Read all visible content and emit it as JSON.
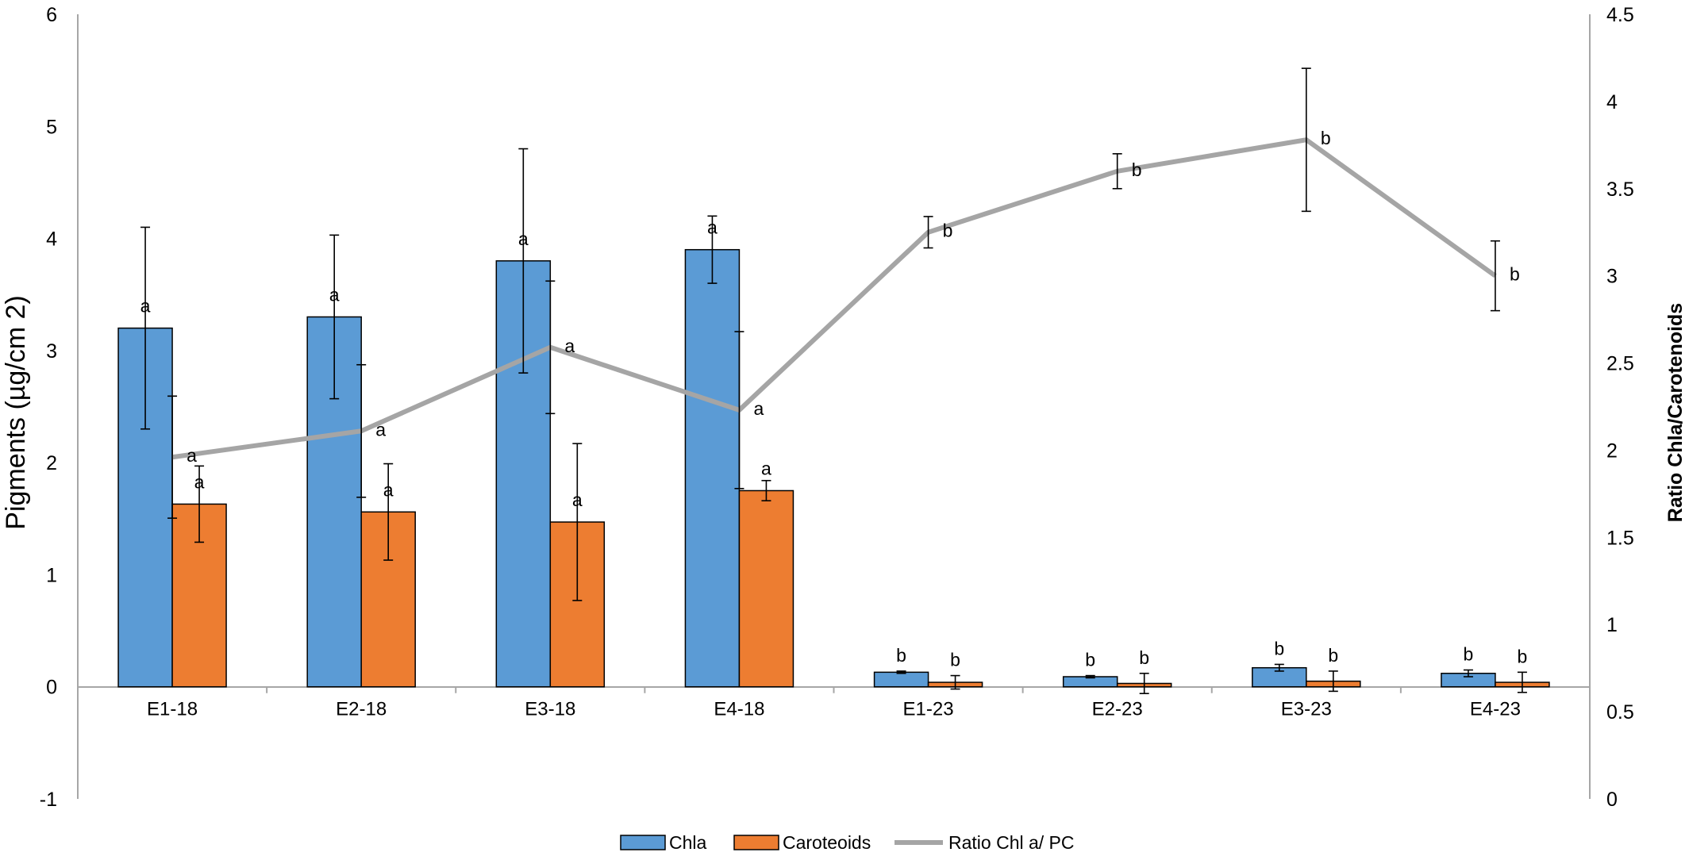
{
  "chart_data": {
    "type": "bar",
    "categories": [
      "E1-18",
      "E2-18",
      "E3-18",
      "E4-18",
      "E1-23",
      "E2-23",
      "E3-23",
      "E4-23"
    ],
    "ylabel": "Pigments (µg/cm 2)",
    "ylabel_right": "Ratio Chla/Carotenoids",
    "ylim": [
      -1,
      6
    ],
    "yticks": [
      "-1",
      "0",
      "1",
      "2",
      "3",
      "4",
      "5",
      "6"
    ],
    "ylim_right": [
      0,
      4.5
    ],
    "yticks_right": [
      "0",
      "0.5",
      "1",
      "1.5",
      "2",
      "2.5",
      "3",
      "3.5",
      "4",
      "4.5"
    ],
    "legend_position": "bottom",
    "grid": false,
    "series": [
      {
        "name": "Chla",
        "type": "bar",
        "axis": "left",
        "color": "#5B9BD5",
        "values": [
          3.2,
          3.3,
          3.8,
          3.9,
          0.13,
          0.09,
          0.17,
          0.12
        ],
        "errors": [
          0.9,
          0.73,
          1.0,
          0.3,
          0.01,
          0.01,
          0.03,
          0.03
        ],
        "labels": [
          "a",
          "a",
          "a",
          "a",
          "b",
          "b",
          "b",
          "b"
        ]
      },
      {
        "name": "Caroteoids",
        "type": "bar",
        "axis": "left",
        "color": "#ED7D31",
        "values": [
          1.63,
          1.56,
          1.47,
          1.75,
          0.04,
          0.03,
          0.05,
          0.04
        ],
        "errors": [
          0.34,
          0.43,
          0.7,
          0.09,
          0.06,
          0.09,
          0.09,
          0.09
        ],
        "labels": [
          "a",
          "a",
          "a",
          "a",
          "b",
          "b",
          "b",
          "b"
        ]
      },
      {
        "name": "Ratio Chl a/ PC",
        "type": "line",
        "axis": "right",
        "color": "#A5A5A5",
        "values": [
          1.96,
          2.11,
          2.59,
          2.23,
          3.25,
          3.6,
          3.78,
          3.0
        ],
        "errors": [
          0.35,
          0.38,
          0.38,
          0.45,
          0.09,
          0.1,
          0.41,
          0.2
        ],
        "labels": [
          "a",
          "a",
          "a",
          "a",
          "b",
          "b",
          "b",
          "b"
        ]
      }
    ]
  }
}
